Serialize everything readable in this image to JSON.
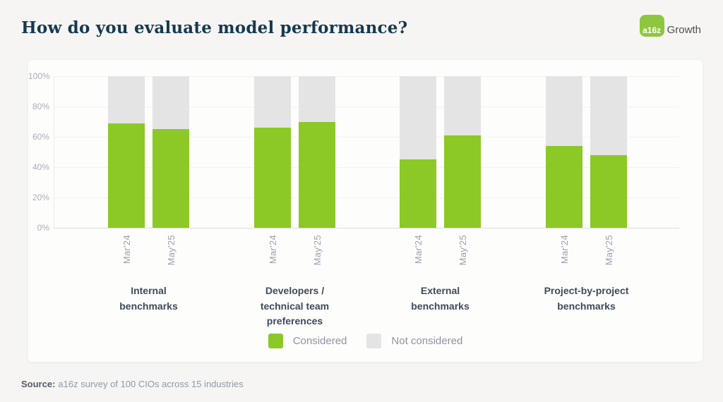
{
  "page": {
    "logo": {
      "badge": "a16z",
      "brand": "Growth"
    },
    "source_label": "Source:",
    "source_text": "a16z survey of 100 CIOs across 15 industries"
  },
  "colors": {
    "considered": "#8CC826",
    "not_considered": "#E4E4E4",
    "title_navy": "#16394F",
    "logo_green": "#8DC73F"
  },
  "chart_data": {
    "type": "bar",
    "variant": "stacked-percent",
    "title": "How do you evaluate model performance?",
    "xlabel": "",
    "ylabel": "",
    "ylim": [
      0,
      100
    ],
    "grid": true,
    "y_ticks": [
      "0%",
      "20%",
      "40%",
      "60%",
      "80%",
      "100%"
    ],
    "legend": [
      "Considered",
      "Not considered"
    ],
    "legend_position": "bottom-center",
    "categories": [
      "Internal benchmarks",
      "Developers / technical team preferences",
      "External benchmarks",
      "Project-by-project benchmarks"
    ],
    "periods": [
      "Mar'24",
      "May'25"
    ],
    "series": [
      {
        "name": "Considered (Mar'24)",
        "values": [
          69,
          66,
          45,
          54
        ]
      },
      {
        "name": "Considered (May'25)",
        "values": [
          65,
          70,
          61,
          48
        ]
      }
    ],
    "groups": [
      {
        "category_lines": [
          "Internal",
          "benchmarks"
        ],
        "bars": [
          {
            "period": "Mar'24",
            "considered": 69,
            "not_considered": 31
          },
          {
            "period": "May'25",
            "considered": 65,
            "not_considered": 35
          }
        ]
      },
      {
        "category_lines": [
          "Developers /",
          "technical team",
          "preferences"
        ],
        "bars": [
          {
            "period": "Mar'24",
            "considered": 66,
            "not_considered": 34
          },
          {
            "period": "May'25",
            "considered": 70,
            "not_considered": 30
          }
        ]
      },
      {
        "category_lines": [
          "External",
          "benchmarks"
        ],
        "bars": [
          {
            "period": "Mar'24",
            "considered": 45,
            "not_considered": 55
          },
          {
            "period": "May'25",
            "considered": 61,
            "not_considered": 39
          }
        ]
      },
      {
        "category_lines": [
          "Project-by-project",
          "benchmarks"
        ],
        "bars": [
          {
            "period": "Mar'24",
            "considered": 54,
            "not_considered": 46
          },
          {
            "period": "May'25",
            "considered": 48,
            "not_considered": 52
          }
        ]
      }
    ]
  }
}
